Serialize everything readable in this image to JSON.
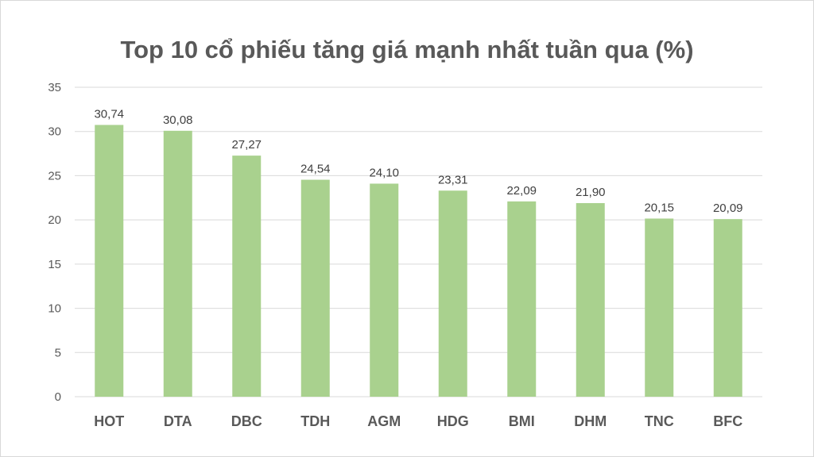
{
  "chart_data": {
    "type": "bar",
    "title": "Top 10 cổ phiếu tăng giá mạnh nhất tuần qua (%)",
    "xlabel": "",
    "ylabel": "",
    "categories": [
      "HOT",
      "DTA",
      "DBC",
      "TDH",
      "AGM",
      "HDG",
      "BMI",
      "DHM",
      "TNC",
      "BFC"
    ],
    "values": [
      30.74,
      30.08,
      27.27,
      24.54,
      24.1,
      23.31,
      22.09,
      21.9,
      20.15,
      20.09
    ],
    "value_labels": [
      "30,74",
      "30,08",
      "27,27",
      "24,54",
      "24,10",
      "23,31",
      "22,09",
      "21,90",
      "20,15",
      "20,09"
    ],
    "ylim": [
      0,
      35
    ],
    "yticks": [
      "0",
      "5",
      "10",
      "15",
      "20",
      "25",
      "30",
      "35"
    ],
    "ytick_values": [
      0,
      5,
      10,
      15,
      20,
      25,
      30,
      35
    ],
    "grid": true,
    "legend": "none",
    "bar_color": "#a9d18e"
  }
}
